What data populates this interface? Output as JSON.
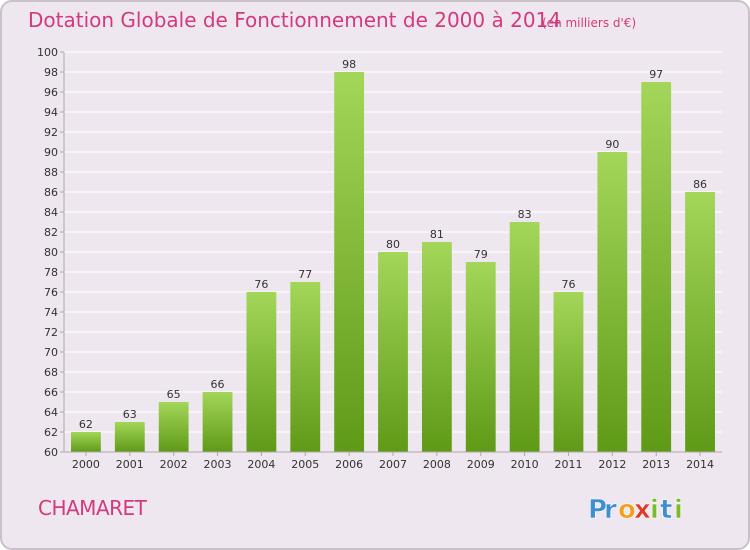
{
  "chart_data": {
    "type": "bar",
    "title": "Dotation Globale de Fonctionnement de 2000 à 2014",
    "subtitle": "(en milliers d'€)",
    "categories": [
      "2000",
      "2001",
      "2002",
      "2003",
      "2004",
      "2005",
      "2006",
      "2007",
      "2008",
      "2009",
      "2010",
      "2011",
      "2012",
      "2013",
      "2014"
    ],
    "values": [
      62,
      63,
      65,
      66,
      76,
      77,
      98,
      80,
      81,
      79,
      83,
      76,
      90,
      97,
      86
    ],
    "ylim": [
      60,
      100
    ],
    "ytick_step": 2,
    "xlabel": "",
    "ylabel": "",
    "grid": true,
    "colors": {
      "bar_light": "#a3d659",
      "bar_dark": "#5f9a17",
      "grid": "#ffffff",
      "axis": "#aaaaaa",
      "text": "#333333",
      "accent": "#d33a7e"
    }
  },
  "commune": "CHAMARET",
  "logo": {
    "letters": [
      "P",
      "r",
      "o",
      "x",
      "i",
      "t",
      "i"
    ],
    "colors": [
      "#3d8fd1",
      "#3d8fd1",
      "#f0a020",
      "#e03a2a",
      "#7cba2c",
      "#3d8fd1",
      "#7cba2c"
    ]
  }
}
